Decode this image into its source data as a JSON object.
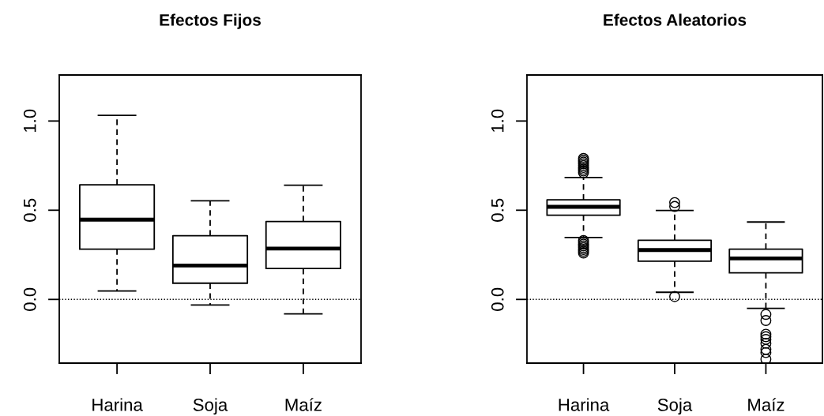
{
  "chart_data": [
    {
      "type": "box",
      "title": "Efectos Fijos",
      "categories": [
        "Harina",
        "Soja",
        "Maíz"
      ],
      "ylim": [
        -0.357,
        1.258
      ],
      "yticks": [
        {
          "value": 0,
          "label": "0.0"
        },
        {
          "value": 0.5,
          "label": "0.5"
        },
        {
          "value": 1,
          "label": "1.0"
        }
      ],
      "grid": false,
      "boxes": [
        {
          "low": 0.047,
          "q1": 0.282,
          "median": 0.447,
          "q3": 0.642,
          "high": 1.032
        },
        {
          "low": -0.031,
          "q1": 0.091,
          "median": 0.19,
          "q3": 0.357,
          "high": 0.553
        },
        {
          "low": -0.081,
          "q1": 0.173,
          "median": 0.285,
          "q3": 0.437,
          "high": 0.64
        }
      ],
      "ref_lines": [
        {
          "axis": "y",
          "value": 0,
          "line_style": "dotted",
          "color": "#000000"
        }
      ]
    },
    {
      "type": "box",
      "title": "Efectos Aleatorios",
      "categories": [
        "Harina",
        "Soja",
        "Maíz"
      ],
      "ylim": [
        -0.357,
        1.258
      ],
      "yticks": [
        {
          "value": 0,
          "label": "0.0"
        },
        {
          "value": 0.5,
          "label": "0.5"
        },
        {
          "value": 1,
          "label": "1.0"
        }
      ],
      "grid": false,
      "boxes": [
        {
          "low": 0.347,
          "q1": 0.472,
          "median": 0.519,
          "q3": 0.558,
          "high": 0.683,
          "outliers": [
            0.79,
            0.78,
            0.77,
            0.76,
            0.75,
            0.74,
            0.73,
            0.72,
            0.71,
            0.33,
            0.32,
            0.31,
            0.3,
            0.29,
            0.28,
            0.27,
            0.26
          ]
        },
        {
          "low": 0.04,
          "q1": 0.214,
          "median": 0.277,
          "q3": 0.332,
          "high": 0.499,
          "outliers": [
            0.543,
            0.521,
            0.016
          ]
        },
        {
          "low": -0.05,
          "q1": 0.149,
          "median": 0.23,
          "q3": 0.282,
          "high": 0.434,
          "outliers": [
            -0.084,
            -0.118,
            -0.195,
            -0.209,
            -0.224,
            -0.246,
            -0.28,
            -0.298,
            -0.335
          ]
        }
      ],
      "ref_lines": [
        {
          "axis": "y",
          "value": 0,
          "line_style": "dotted",
          "color": "#000000"
        }
      ]
    }
  ]
}
